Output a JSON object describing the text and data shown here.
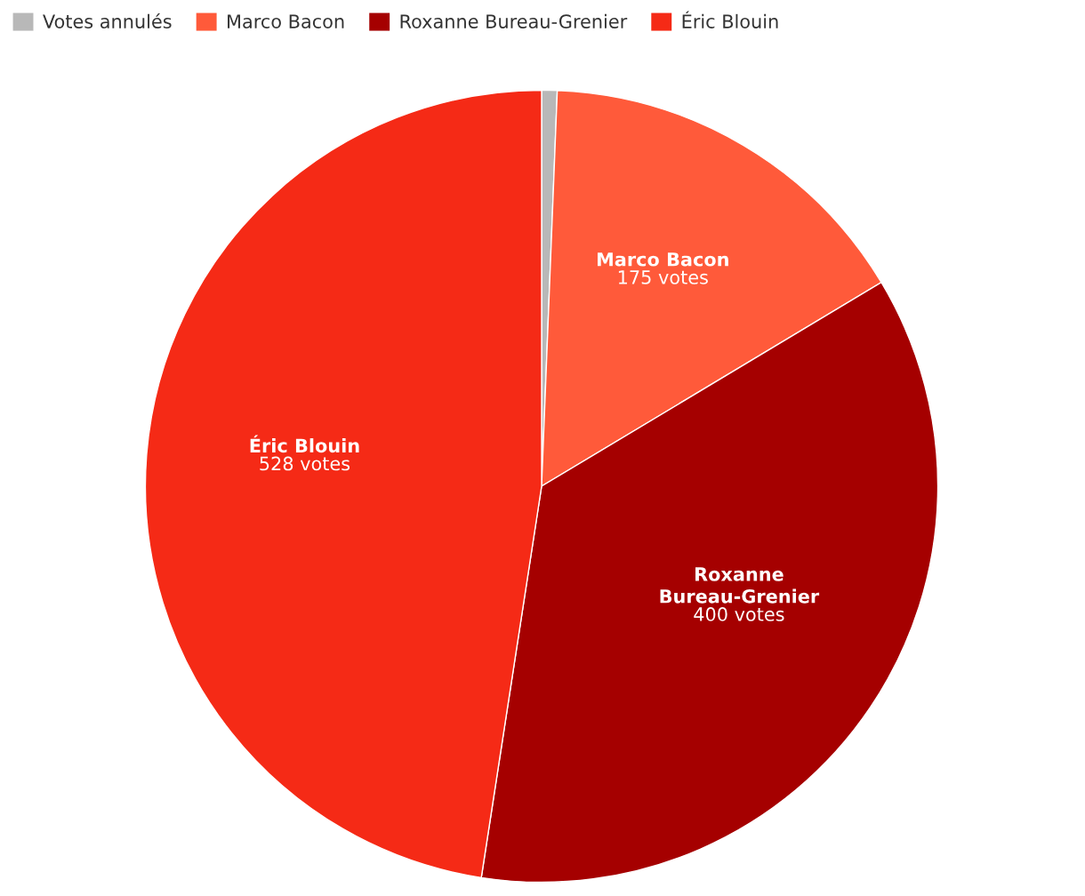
{
  "chart_data": {
    "type": "pie",
    "categories": [
      "Votes annulés",
      "Marco Bacon",
      "Roxanne Bureau-Grenier",
      "Éric Blouin"
    ],
    "values": [
      7,
      175,
      400,
      528
    ],
    "value_labels": [
      null,
      "175 votes",
      "400 votes",
      "528 votes"
    ],
    "colors": [
      "#b8b8b8",
      "#ff5a3a",
      "#a50000",
      "#f52a16"
    ],
    "legend": "top left"
  }
}
